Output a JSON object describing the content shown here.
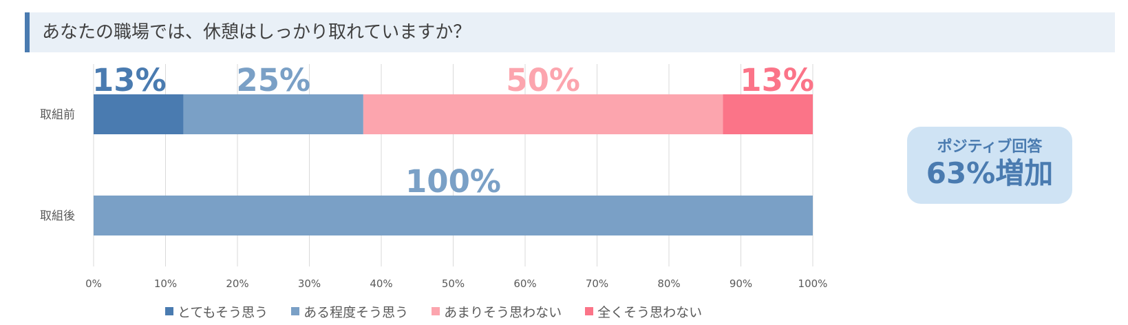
{
  "title": "あなたの職場では、休憩はしっかり取れていますか？",
  "callout": {
    "line1": "ポジティブ回答",
    "line2": "63%増加"
  },
  "colors": {
    "series": [
      "#4a7bb0",
      "#7aa0c6",
      "#fca5ae",
      "#fb7488"
    ],
    "grid": "#d9d9d9",
    "axis_text": "#595959",
    "title_bar_bg": "#e9f0f7",
    "title_accent": "#4a7bb0",
    "callout_bg": "#cfe3f4"
  },
  "chart_data": {
    "type": "bar",
    "orientation": "horizontal",
    "stacked": true,
    "title": "あなたの職場では、休憩はしっかり取れていますか？",
    "categories": [
      "取組前",
      "取組後"
    ],
    "series": [
      {
        "name": "とてもそう思う",
        "values": [
          12.5,
          0
        ],
        "labels": [
          "13%",
          ""
        ]
      },
      {
        "name": "ある程度そう思う",
        "values": [
          25,
          100
        ],
        "labels": [
          "25%",
          "100%"
        ]
      },
      {
        "name": "あまりそう思わない",
        "values": [
          50,
          0
        ],
        "labels": [
          "50%",
          ""
        ]
      },
      {
        "name": "全くそう思わない",
        "values": [
          12.5,
          0
        ],
        "labels": [
          "13%",
          ""
        ]
      }
    ],
    "xlim": [
      0,
      100
    ],
    "xticks": [
      "0%",
      "10%",
      "20%",
      "30%",
      "40%",
      "50%",
      "60%",
      "70%",
      "80%",
      "90%",
      "100%"
    ],
    "grid": true,
    "legend_position": "bottom"
  }
}
